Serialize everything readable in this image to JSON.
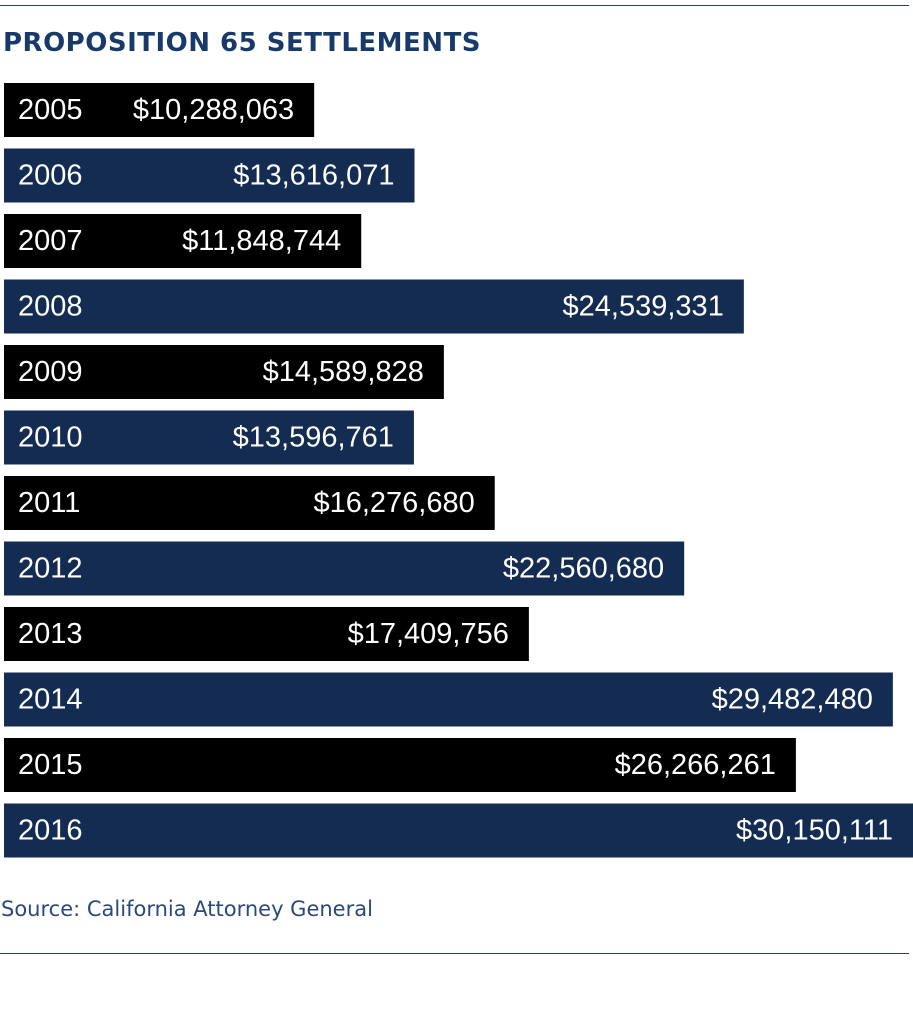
{
  "colors": {
    "bar_dark": "#000000",
    "bar_navy": "#142c52",
    "title": "#173a6b",
    "source": "#2b4a7a",
    "rule": "#2b3f5e"
  },
  "chart_data": {
    "type": "bar",
    "orientation": "horizontal",
    "title": "PROPOSITION 65 SETTLEMENTS",
    "source": "Source: California Attorney General",
    "categories": [
      "2005",
      "2006",
      "2007",
      "2008",
      "2009",
      "2010",
      "2011",
      "2012",
      "2013",
      "2014",
      "2015",
      "2016"
    ],
    "values": [
      10288063,
      13616071,
      11848744,
      24539331,
      14589828,
      13596761,
      16276680,
      22560680,
      17409756,
      29482480,
      26266261,
      30150111
    ],
    "value_labels": [
      "$10,288,063",
      "$13,616,071",
      "$11,848,744",
      "$24,539,331",
      "$14,589,828",
      "$13,596,761",
      "$16,276,680",
      "$22,560,680",
      "$17,409,756",
      "$29,482,480",
      "$26,266,261",
      "$30,150,111"
    ],
    "bar_colors": [
      "#000000",
      "#142c52",
      "#000000",
      "#142c52",
      "#000000",
      "#142c52",
      "#000000",
      "#142c52",
      "#000000",
      "#142c52",
      "#000000",
      "#142c52"
    ],
    "xlim": [
      0,
      30150111
    ],
    "grid": false,
    "legend": "none"
  }
}
